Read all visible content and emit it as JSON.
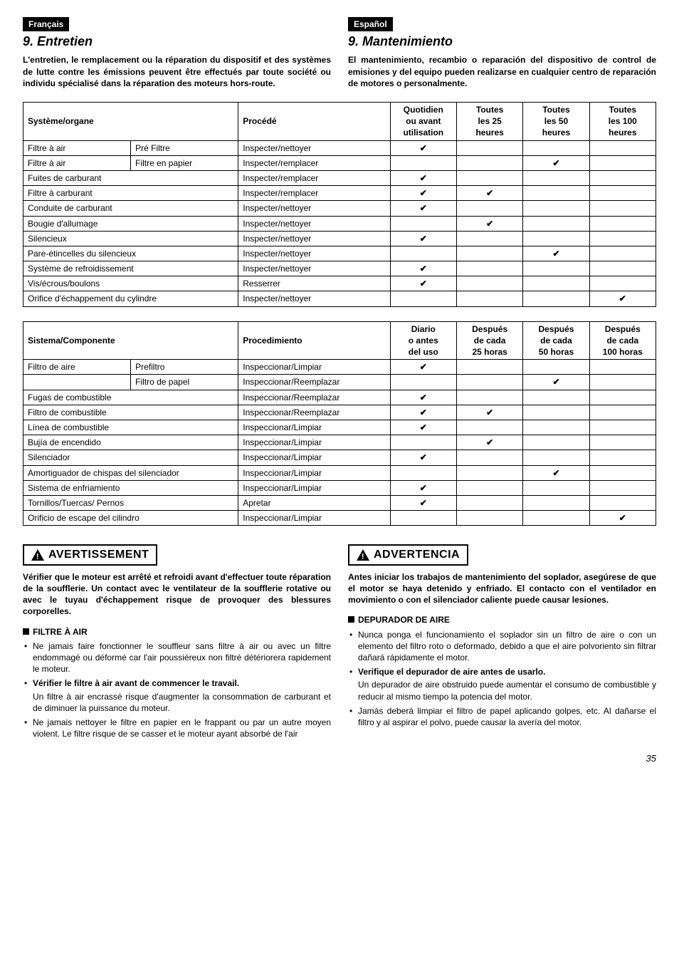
{
  "left": {
    "langTag": "Français",
    "title": "9. Entretien",
    "intro": "L'entretien, le remplacement ou la réparation du dispositif et des systèmes de lutte contre les émissions peuvent être effectués par toute société ou individu spécialisé dans la réparation des moteurs hors-route."
  },
  "right": {
    "langTag": "Español",
    "title": "9. Mantenimiento",
    "intro": "El mantenimiento, recambio o reparación del dispositivo de control de emisiones y del equipo pueden realizarse en cualquier centro de reparación de motores o personalmente."
  },
  "tableFr": {
    "headers": {
      "sys": "Système/organe",
      "proc": "Procédé",
      "c1": "Quotidien\nou avant\nutilisation",
      "c2": "Toutes\nles 25\nheures",
      "c3": "Toutes\nles 50\nheures",
      "c4": "Toutes\nles 100\nheures"
    },
    "rows": [
      {
        "sysSplit": [
          "Filtre à air",
          "Pré Filtre"
        ],
        "proc": "Inspecter/nettoyer",
        "checks": [
          true,
          false,
          false,
          false
        ]
      },
      {
        "sysSplit": [
          "Filtre à air",
          "Filtre en papier"
        ],
        "proc": "Inspecter/remplacer",
        "checks": [
          false,
          false,
          true,
          false
        ]
      },
      {
        "sys": "Fuites de carburant",
        "proc": "Inspecter/remplacer",
        "checks": [
          true,
          false,
          false,
          false
        ]
      },
      {
        "sys": "Filtre à carburant",
        "proc": "Inspecter/remplacer",
        "checks": [
          true,
          true,
          false,
          false
        ]
      },
      {
        "sys": "Conduite de carburant",
        "proc": "Inspecter/nettoyer",
        "checks": [
          true,
          false,
          false,
          false
        ]
      },
      {
        "sys": "Bougie d'allumage",
        "proc": "Inspecter/nettoyer",
        "checks": [
          false,
          true,
          false,
          false
        ]
      },
      {
        "sys": "Silencieux",
        "proc": "Inspecter/nettoyer",
        "checks": [
          true,
          false,
          false,
          false
        ]
      },
      {
        "sys": "Pare-étincelles du silencieux",
        "proc": "Inspecter/nettoyer",
        "checks": [
          false,
          false,
          true,
          false
        ]
      },
      {
        "sys": "Système de refroidissement",
        "proc": "Inspecter/nettoyer",
        "checks": [
          true,
          false,
          false,
          false
        ]
      },
      {
        "sys": "Vis/écrous/boulons",
        "proc": "Resserrer",
        "checks": [
          true,
          false,
          false,
          false
        ]
      },
      {
        "sys": "Orifice d'échappement du cylindre",
        "proc": "Inspecter/nettoyer",
        "checks": [
          false,
          false,
          false,
          true
        ]
      }
    ]
  },
  "tableEs": {
    "headers": {
      "sys": "Sistema/Componente",
      "proc": "Procedimiento",
      "c1": "Diario\no antes\ndel uso",
      "c2": "Después\nde cada\n25 horas",
      "c3": "Después\nde cada\n50 horas",
      "c4": "Después\nde cada\n100 horas"
    },
    "rows": [
      {
        "sysSplit": [
          "Filtro de aire",
          "Prefiltro"
        ],
        "proc": "Inspeccionar/Limpiar",
        "checks": [
          true,
          false,
          false,
          false
        ]
      },
      {
        "sysSplit": [
          "",
          "Filtro de papel"
        ],
        "proc": "Inspeccionar/Reemplazar",
        "checks": [
          false,
          false,
          true,
          false
        ]
      },
      {
        "sys": "Fugas de combustible",
        "proc": "Inspeccionar/Reemplazar",
        "checks": [
          true,
          false,
          false,
          false
        ]
      },
      {
        "sys": "Filtro de combustible",
        "proc": "Inspeccionar/Reemplazar",
        "checks": [
          true,
          true,
          false,
          false
        ]
      },
      {
        "sys": "Línea de combustible",
        "proc": "Inspeccionar/Limpiar",
        "checks": [
          true,
          false,
          false,
          false
        ]
      },
      {
        "sys": "Bujía de encendido",
        "proc": "Inspeccionar/Limpiar",
        "checks": [
          false,
          true,
          false,
          false
        ]
      },
      {
        "sys": "Silenciador",
        "proc": "Inspeccionar/Limpiar",
        "checks": [
          true,
          false,
          false,
          false
        ]
      },
      {
        "sys": "Amortiguador de chispas del silenciador",
        "proc": "Inspeccionar/Limpiar",
        "checks": [
          false,
          false,
          true,
          false
        ]
      },
      {
        "sys": "Sistema de enfriamiento",
        "proc": "Inspeccionar/Limpiar",
        "checks": [
          true,
          false,
          false,
          false
        ]
      },
      {
        "sys": "Tornillos/Tuercas/ Pernos",
        "proc": "Apretar",
        "checks": [
          true,
          false,
          false,
          false
        ]
      },
      {
        "sys": "Orificio de escape del cilindro",
        "proc": "Inspeccionar/Limpiar",
        "checks": [
          false,
          false,
          false,
          true
        ]
      }
    ]
  },
  "warnLeft": {
    "label": "AVERTISSEMENT",
    "text": "Vérifier que le moteur est arrêté et refroidi avant d'effectuer toute réparation de la soufflerie. Un contact avec le ventilateur de la soufflerie rotative ou avec le tuyau d'échappement risque de provoquer des blessures corporelles.",
    "subhead": "FILTRE À AIR",
    "bullets": [
      {
        "text": "Ne jamais faire fonctionner le souffleur sans filtre à air ou avec un filtre endommagé ou déformé car l'air poussiéreux non filtré détériorera rapidement le moteur."
      },
      {
        "boldText": "Vérifier le filtre à air avant de commencer le travail.",
        "para": "Un filtre à air encrassé risque d'augmenter la consommation de carburant et de diminuer la puissance du moteur."
      },
      {
        "text": "Ne jamais nettoyer le filtre en papier en le frappant ou par un autre moyen violent. Le filtre risque de se casser et le moteur ayant absorbé de l'air"
      }
    ]
  },
  "warnRight": {
    "label": "ADVERTENCIA",
    "text": "Antes iniciar los trabajos de mantenimiento del soplador, asegúrese de que el motor se haya detenido y enfriado. El contacto con el ventilador en movimiento o con el silenciador caliente puede causar lesiones.",
    "subhead": "DEPURADOR DE AIRE",
    "bullets": [
      {
        "text": "Nunca ponga el funcionamiento el soplador sin un filtro de aire o con un elemento del filtro roto o deformado, debido a que el aire polvoriento sin filtrar dañará rápidamente el motor."
      },
      {
        "boldText": "Verifique el depurador de aire antes de usarlo.",
        "para": "Un depurador de aire obstruido puede aumentar el consumo de combustible y reducir al mismo tiempo la potencia del motor."
      },
      {
        "text": "Jamás deberá limpiar el filtro de papel aplicando golpes, etc.  Al dañarse el filtro y al aspirar el polvo, puede causar la avería del motor."
      }
    ]
  },
  "checkGlyph": "✔",
  "pageNum": "35"
}
